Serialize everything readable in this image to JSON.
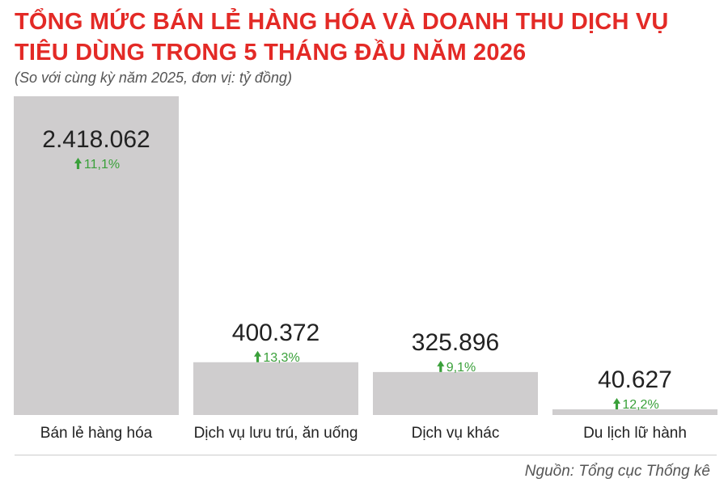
{
  "header": {
    "title": "TỔNG MỨC BÁN LẺ HÀNG HÓA VÀ DOANH THU DỊCH VỤ TIÊU DÙNG TRONG 5 THÁNG ĐẦU NĂM 2026",
    "subtitle": "(So với cùng kỳ năm 2025, đơn vị: tỷ đồng)"
  },
  "footer": {
    "source": "Nguồn: Tổng cục Thống kê"
  },
  "colors": {
    "title": "#e32a26",
    "bar": "#cfcdce",
    "growth": "#3aa03a",
    "text": "#222222"
  },
  "chart_data": {
    "type": "bar",
    "categories": [
      "Bán lẻ hàng hóa",
      "Dịch vụ lưu trú, ăn uống",
      "Dịch vụ khác",
      "Du lịch lữ hành"
    ],
    "values": [
      2418062,
      400372,
      325896,
      40627
    ],
    "value_labels": [
      "2.418.062",
      "400.372",
      "325.896",
      "40.627"
    ],
    "growth_labels": [
      "11,1%",
      "13,3%",
      "9,1%",
      "12,2%"
    ],
    "ylim": [
      0,
      2418062
    ]
  }
}
